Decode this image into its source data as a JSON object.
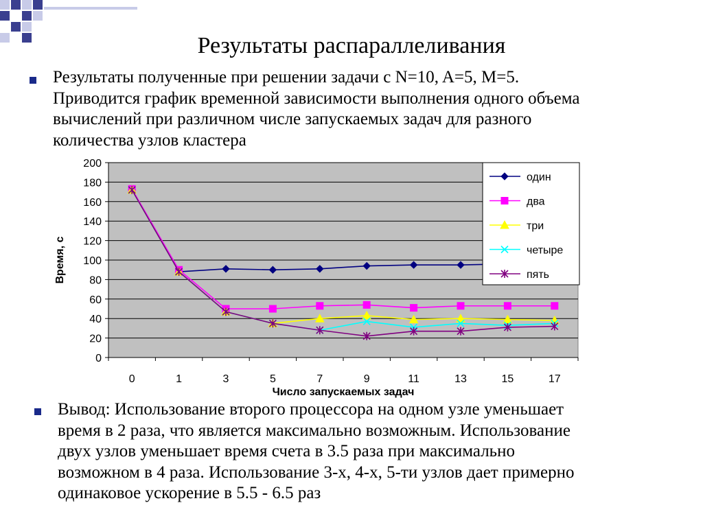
{
  "slide": {
    "title": "Результаты распараллеливания",
    "intro_lines": [
      "Результаты полученные при решении задачи с N=10, A=5, M=5.",
      "Приводится график временной зависимости выполнения одного объема",
      "вычислений при различном числе запускаемых задач для разного",
      "количества узлов кластера"
    ],
    "conclusion_lines": [
      "Вывод: Использование второго процессора на одном узле уменьшает",
      "время в 2 раза, что является максимально возможным. Использование",
      "двух узлов уменьшает время счета в 3.5 раза при максимально",
      "возможном в 4 раза. Использование 3-х, 4-х, 5-ти узлов дает примерно",
      "одинаковое ускорение в 5.5 - 6.5 раз"
    ]
  },
  "colors": {
    "bullet": "#1a2a8a",
    "plot_bg": "#c0c0c0",
    "corner_dark": "#3a3f8f",
    "corner_light": "#c8cbe8"
  },
  "chart_data": {
    "type": "line",
    "title": "",
    "xlabel": "Число запускаемых задач",
    "ylabel": "Время, с",
    "categories": [
      "0",
      "1",
      "3",
      "5",
      "7",
      "9",
      "11",
      "13",
      "15",
      "17"
    ],
    "ylim": [
      0,
      200
    ],
    "yticks": [
      0,
      20,
      40,
      60,
      80,
      100,
      120,
      140,
      160,
      180,
      200
    ],
    "grid": true,
    "legend_position": "top-right",
    "series": [
      {
        "name": "один",
        "color": "#000080",
        "marker": "diamond",
        "values": [
          172,
          88,
          91,
          90,
          91,
          94,
          95,
          95,
          96,
          97
        ]
      },
      {
        "name": "два",
        "color": "#ff00ff",
        "marker": "square",
        "values": [
          173,
          90,
          50,
          50,
          53,
          54,
          51,
          53,
          53,
          53
        ]
      },
      {
        "name": "три",
        "color": "#ffff00",
        "marker": "triangle",
        "values": [
          172,
          88,
          47,
          35,
          40,
          43,
          39,
          40,
          39,
          38
        ]
      },
      {
        "name": "четыре",
        "color": "#00ffff",
        "marker": "x",
        "values": [
          172,
          88,
          47,
          35,
          28,
          37,
          31,
          35,
          33,
          35
        ]
      },
      {
        "name": "пять",
        "color": "#800080",
        "marker": "asterisk",
        "values": [
          172,
          88,
          47,
          35,
          28,
          22,
          27,
          27,
          31,
          32
        ]
      }
    ]
  }
}
